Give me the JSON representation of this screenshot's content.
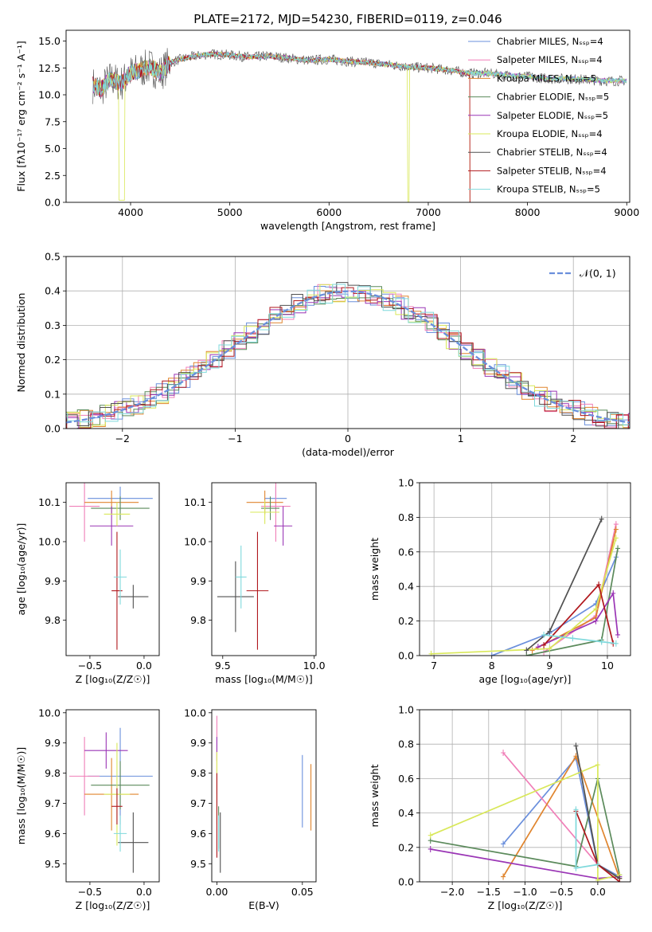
{
  "figure_title": "PLATE=2172, MJD=54230, FIBERID=0119, z=0.046",
  "colors": [
    "#6a8fdc",
    "#f07fb8",
    "#e0852e",
    "#5b8a5b",
    "#9a35b5",
    "#d9e85a",
    "#505050",
    "#b0171c",
    "#7fd9dc"
  ],
  "chart_data": [
    {
      "id": "spectrum",
      "type": "line",
      "title": "PLATE=2172, MJD=54230, FIBERID=0119, z=0.046",
      "xlabel": "wavelength [Angstrom, rest frame]",
      "ylabel": "Flux [fλ10⁻¹⁷ erg cm⁻² s⁻¹ A⁻¹]",
      "xlim": [
        3350,
        9030
      ],
      "ylim": [
        0,
        16
      ],
      "xticks": [
        4000,
        5000,
        6000,
        7000,
        8000,
        9000
      ],
      "yticks": [
        0.0,
        2.5,
        5.0,
        7.5,
        10.0,
        12.5,
        15.0
      ],
      "legend_position": "top-right",
      "legend": [
        "Chabrier MILES, Nₛₛₚ=4",
        "Salpeter MILES, Nₛₛₚ=4",
        "Kroupa MILES, Nₛₛₚ=5",
        "Chabrier ELODIE, Nₛₛₚ=5",
        "Salpeter ELODIE, Nₛₛₚ=5",
        "Kroupa ELODIE, Nₛₛₚ=4",
        "Chabrier STELIB, Nₛₛₚ=4",
        "Salpeter STELIB, Nₛₛₚ=4",
        "Kroupa STELIB, Nₛₛₚ=5"
      ],
      "data_series": {
        "x": [
          3600,
          3700,
          3800,
          3900,
          4000,
          4100,
          4200,
          4300,
          4400,
          4500,
          4600,
          4800,
          5000,
          5200,
          5400,
          5600,
          5800,
          6000,
          6200,
          6400,
          6600,
          6800,
          7000,
          7200,
          7400,
          7600,
          7800,
          8000,
          8200,
          8400,
          8600,
          8800
        ],
        "y": [
          11.0,
          10.5,
          11.5,
          11.0,
          12.0,
          12.3,
          12.6,
          12.0,
          13.0,
          13.3,
          13.5,
          13.8,
          13.7,
          13.5,
          13.6,
          13.4,
          13.2,
          13.3,
          13.1,
          13.0,
          12.8,
          12.6,
          12.5,
          12.3,
          12.0,
          12.0,
          11.8,
          11.7,
          11.5,
          11.5,
          11.4,
          11.3
        ]
      }
    },
    {
      "id": "residuals",
      "type": "step",
      "xlabel": "(data-model)/error",
      "ylabel": "Normed distribution",
      "xlim": [
        -2.5,
        2.5
      ],
      "ylim": [
        0,
        0.5
      ],
      "xticks": [
        -2,
        -1,
        0,
        1,
        2
      ],
      "yticks": [
        0.0,
        0.1,
        0.2,
        0.3,
        0.4,
        0.5
      ],
      "grid": true,
      "legend_position": "top-right",
      "legend": [
        "𝒩(0, 1)"
      ]
    },
    {
      "id": "age_vs_Z",
      "type": "errorbar",
      "xlabel": "Z [log₁₀(Z/Z☉)]",
      "ylabel": "age  [log₁₀(age/yr)]",
      "xlim": [
        -0.72,
        0.14
      ],
      "ylim": [
        9.71,
        10.15
      ],
      "xticks": [
        -0.5,
        0.0
      ],
      "yticks": [
        9.8,
        9.9,
        10.0,
        10.1
      ],
      "points": [
        {
          "x": -0.22,
          "y": 10.11,
          "xerr": 0.3,
          "yerr": 0.03
        },
        {
          "x": -0.55,
          "y": 10.09,
          "xerr": 0.14,
          "yerr": 0.09
        },
        {
          "x": -0.3,
          "y": 10.1,
          "xerr": 0.25,
          "yerr": 0.03
        },
        {
          "x": -0.22,
          "y": 10.085,
          "xerr": 0.27,
          "yerr": 0.03
        },
        {
          "x": -0.3,
          "y": 10.04,
          "xerr": 0.2,
          "yerr": 0.05
        },
        {
          "x": -0.25,
          "y": 10.07,
          "xerr": 0.12,
          "yerr": 0.03
        },
        {
          "x": -0.1,
          "y": 9.86,
          "xerr": 0.14,
          "yerr": 0.03
        },
        {
          "x": -0.25,
          "y": 9.875,
          "xerr": 0.05,
          "yerr": 0.15
        },
        {
          "x": -0.22,
          "y": 9.91,
          "xerr": 0.06,
          "yerr": 0.07
        }
      ]
    },
    {
      "id": "age_vs_mass",
      "type": "errorbar",
      "xlabel": "mass [log₁₀(M/M☉)]",
      "ylabel": "",
      "xlim": [
        9.44,
        10.01
      ],
      "ylim": [
        9.71,
        10.15
      ],
      "xticks": [
        9.5,
        10.0
      ],
      "yticks": [
        9.8,
        9.9,
        10.0,
        10.1
      ],
      "points": [
        {
          "x": 9.79,
          "y": 10.11,
          "xerr": 0.06,
          "yerr": 0.03
        },
        {
          "x": 9.79,
          "y": 10.09,
          "xerr": 0.08,
          "yerr": 0.09
        },
        {
          "x": 9.73,
          "y": 10.1,
          "xerr": 0.1,
          "yerr": 0.03
        },
        {
          "x": 9.76,
          "y": 10.085,
          "xerr": 0.05,
          "yerr": 0.03
        },
        {
          "x": 9.83,
          "y": 10.04,
          "xerr": 0.05,
          "yerr": 0.05
        },
        {
          "x": 9.73,
          "y": 10.075,
          "xerr": 0.08,
          "yerr": 0.03
        },
        {
          "x": 9.57,
          "y": 9.86,
          "xerr": 0.1,
          "yerr": 0.09
        },
        {
          "x": 9.69,
          "y": 9.875,
          "xerr": 0.06,
          "yerr": 0.15
        },
        {
          "x": 9.6,
          "y": 9.91,
          "xerr": 0.03,
          "yerr": 0.08
        }
      ]
    },
    {
      "id": "weight_vs_age",
      "type": "line",
      "xlabel": "age  [log₁₀(age/yr)]",
      "ylabel": "mass weight",
      "xlim": [
        6.75,
        10.4
      ],
      "ylim": [
        0,
        1.0
      ],
      "xticks": [
        7,
        8,
        9,
        10
      ],
      "yticks": [
        0.0,
        0.2,
        0.4,
        0.6,
        0.8,
        1.0
      ],
      "grid": true,
      "series": [
        {
          "x": [
            8.0,
            9.0,
            9.8,
            10.15
          ],
          "y": [
            0.0,
            0.13,
            0.3,
            0.57
          ]
        },
        {
          "x": [
            8.9,
            9.8,
            10.15
          ],
          "y": [
            0.02,
            0.23,
            0.76
          ]
        },
        {
          "x": [
            8.7,
            9.8,
            10.15
          ],
          "y": [
            0.03,
            0.22,
            0.73
          ]
        },
        {
          "x": [
            8.6,
            9.9,
            10.18
          ],
          "y": [
            0.0,
            0.09,
            0.62
          ]
        },
        {
          "x": [
            8.8,
            9.8,
            10.1,
            10.18
          ],
          "y": [
            0.05,
            0.2,
            0.36,
            0.12
          ]
        },
        {
          "x": [
            6.95,
            9.0,
            9.8,
            10.15
          ],
          "y": [
            0.01,
            0.04,
            0.27,
            0.68
          ]
        },
        {
          "x": [
            8.6,
            9.0,
            9.9
          ],
          "y": [
            0.03,
            0.14,
            0.79
          ]
        },
        {
          "x": [
            8.9,
            9.85,
            10.1
          ],
          "y": [
            0.06,
            0.41,
            0.07
          ]
        },
        {
          "x": [
            8.9,
            9.4,
            9.9,
            10.15
          ],
          "y": [
            0.12,
            0.1,
            0.08,
            0.07
          ]
        }
      ]
    },
    {
      "id": "mass_vs_Z",
      "type": "errorbar",
      "xlabel": "Z [log₁₀(Z/Z☉)]",
      "ylabel": "mass [log₁₀(M/M☉)]",
      "xlim": [
        -0.72,
        0.14
      ],
      "ylim": [
        9.44,
        10.01
      ],
      "xticks": [
        -0.5,
        0.0
      ],
      "yticks": [
        9.5,
        9.6,
        9.7,
        9.8,
        9.9,
        10.0
      ],
      "points": [
        {
          "x": -0.22,
          "y": 9.79,
          "xerr": 0.3,
          "yerr": 0.16
        },
        {
          "x": -0.55,
          "y": 9.79,
          "xerr": 0.14,
          "yerr": 0.13
        },
        {
          "x": -0.3,
          "y": 9.73,
          "xerr": 0.25,
          "yerr": 0.12
        },
        {
          "x": -0.22,
          "y": 9.76,
          "xerr": 0.27,
          "yerr": 0.08
        },
        {
          "x": -0.35,
          "y": 9.875,
          "xerr": 0.2,
          "yerr": 0.06
        },
        {
          "x": -0.25,
          "y": 9.73,
          "xerr": 0.12,
          "yerr": 0.17
        },
        {
          "x": -0.1,
          "y": 9.57,
          "xerr": 0.14,
          "yerr": 0.1
        },
        {
          "x": -0.25,
          "y": 9.69,
          "xerr": 0.05,
          "yerr": 0.06
        },
        {
          "x": -0.22,
          "y": 9.6,
          "xerr": 0.06,
          "yerr": 0.06
        }
      ]
    },
    {
      "id": "mass_vs_EBV",
      "type": "errorbar",
      "xlabel": "E(B-V)",
      "ylabel": "",
      "xlim": [
        -0.003,
        0.058
      ],
      "ylim": [
        9.44,
        10.01
      ],
      "xticks": [
        0.0,
        0.05
      ],
      "yticks": [
        9.5,
        9.6,
        9.7,
        9.8,
        9.9,
        10.0
      ],
      "points": [
        {
          "x": 0.05,
          "y": 9.74,
          "xerr": 0.0,
          "yerr": 0.12
        },
        {
          "x": 0.0,
          "y": 9.86,
          "xerr": 0.0,
          "yerr": 0.13
        },
        {
          "x": 0.055,
          "y": 9.72,
          "xerr": 0.0,
          "yerr": 0.11
        },
        {
          "x": 0.001,
          "y": 9.62,
          "xerr": 0.0,
          "yerr": 0.07
        },
        {
          "x": 0.0,
          "y": 9.88,
          "xerr": 0.0,
          "yerr": 0.04
        },
        {
          "x": 0.0,
          "y": 9.75,
          "xerr": 0.0,
          "yerr": 0.12
        },
        {
          "x": 0.002,
          "y": 9.57,
          "xerr": 0.0,
          "yerr": 0.1
        },
        {
          "x": 0.0,
          "y": 9.66,
          "xerr": 0.0,
          "yerr": 0.14
        },
        {
          "x": 0.001,
          "y": 9.6,
          "xerr": 0.0,
          "yerr": 0.06
        }
      ]
    },
    {
      "id": "weight_vs_Z",
      "type": "line",
      "xlabel": "Z [log₁₀(Z/Z☉)]",
      "ylabel": "mass weight",
      "xlim": [
        -2.45,
        0.45
      ],
      "ylim": [
        0,
        1.0
      ],
      "xticks": [
        -2.0,
        -1.5,
        -1.0,
        -0.5,
        0.0
      ],
      "yticks": [
        0.0,
        0.2,
        0.4,
        0.6,
        0.8,
        1.0
      ],
      "grid": true,
      "series": [
        {
          "x": [
            -1.3,
            -0.3,
            0.0,
            0.3
          ],
          "y": [
            0.22,
            0.72,
            0.1,
            0.03
          ]
        },
        {
          "x": [
            -1.3,
            0.0,
            0.3
          ],
          "y": [
            0.75,
            0.1,
            0.02
          ]
        },
        {
          "x": [
            -1.3,
            -0.3,
            0.3
          ],
          "y": [
            0.03,
            0.73,
            0.02
          ]
        },
        {
          "x": [
            -2.3,
            -0.3,
            0.0,
            0.3
          ],
          "y": [
            0.24,
            0.09,
            0.6,
            0.04
          ]
        },
        {
          "x": [
            -2.3,
            0.0,
            0.3
          ],
          "y": [
            0.19,
            0.02,
            0.03
          ]
        },
        {
          "x": [
            -2.3,
            0.0,
            0.0,
            0.3
          ],
          "y": [
            0.27,
            0.68,
            0.01,
            0.04
          ]
        },
        {
          "x": [
            -0.3,
            0.0,
            0.3
          ],
          "y": [
            0.79,
            0.1,
            0.02
          ]
        },
        {
          "x": [
            -0.3,
            0.0,
            0.3
          ],
          "y": [
            0.41,
            0.1,
            0.0
          ]
        },
        {
          "x": [
            -0.3,
            -0.3,
            0.0
          ],
          "y": [
            0.42,
            0.08,
            0.1
          ]
        }
      ]
    }
  ]
}
